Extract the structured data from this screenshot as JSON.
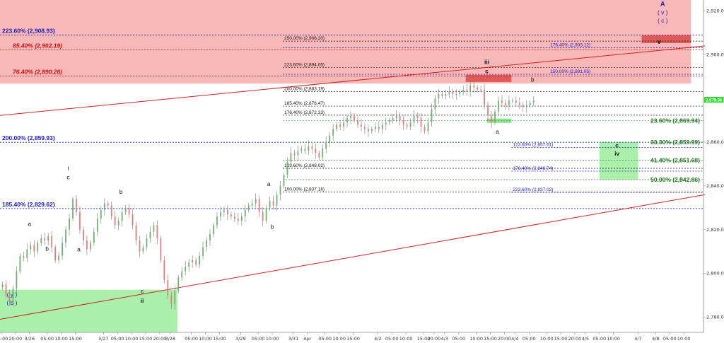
{
  "colors": {
    "up_candle": "#6fb26f",
    "down_candle": "#e87c7c",
    "wick": "#777777",
    "resistance_zone": "#f8b8b8",
    "support_zone": "#aaf0aa",
    "small_red_box": "#e05a5a",
    "small_green_box": "#8fe38f",
    "blue_text": "#1a1acc",
    "red_text": "#cc1111",
    "green_text": "#1f7a1f",
    "black_text": "#111111",
    "trendline": "#cc2222",
    "last_price_tag": "#22dd22"
  },
  "chart_data": {
    "type": "candlestick",
    "title": "",
    "xlabel": "",
    "ylabel": "",
    "ylim": [
      2773,
      2925
    ],
    "grid": false,
    "y_axis_side": "right",
    "y_ticks": [
      "2,780.00",
      "2,800.00",
      "2,820.00",
      "2,840.00",
      "2,860.00",
      "2,880.00",
      "2,900.00",
      "2,920.00"
    ],
    "y_tick_values": [
      2780,
      2800,
      2820,
      2840,
      2860,
      2880,
      2900,
      2920
    ],
    "last_price": 2879.36,
    "last_price_label": "2,879.36",
    "x_ticks": [
      {
        "label": "15:00",
        "i": 0
      },
      {
        "label": "20:00",
        "i": 4
      },
      {
        "label": "3/26",
        "i": 8
      },
      {
        "label": "05:00",
        "i": 13
      },
      {
        "label": "10:00",
        "i": 17
      },
      {
        "label": "15:00",
        "i": 21
      },
      {
        "label": "3/27",
        "i": 29
      },
      {
        "label": "05:00",
        "i": 33
      },
      {
        "label": "10:00",
        "i": 37
      },
      {
        "label": "15:00",
        "i": 41
      },
      {
        "label": "20:00",
        "i": 45
      },
      {
        "label": "3/28",
        "i": 48
      },
      {
        "label": "05:00",
        "i": 54
      },
      {
        "label": "10:00",
        "i": 58
      },
      {
        "label": "15:00",
        "i": 62
      },
      {
        "label": "3/29",
        "i": 68
      },
      {
        "label": "05:00",
        "i": 73
      },
      {
        "label": "10:00",
        "i": 77
      },
      {
        "label": "3/31",
        "i": 83
      },
      {
        "label": "Apr",
        "i": 87
      },
      {
        "label": "05:00",
        "i": 92
      },
      {
        "label": "10:00",
        "i": 96
      },
      {
        "label": "15:00",
        "i": 100
      },
      {
        "label": "4/2",
        "i": 107
      },
      {
        "label": "05:00",
        "i": 111
      },
      {
        "label": "10:00",
        "i": 115
      },
      {
        "label": "15:00",
        "i": 120
      },
      {
        "label": "20:00",
        "i": 123
      },
      {
        "label": "4/3",
        "i": 126
      },
      {
        "label": "05:00",
        "i": 130
      },
      {
        "label": "10:00",
        "i": 135
      },
      {
        "label": "15:00",
        "i": 139
      },
      {
        "label": "20:00",
        "i": 143
      },
      {
        "label": "4/4",
        "i": 146
      },
      {
        "label": "05:00",
        "i": 150
      },
      {
        "label": "10:00",
        "i": 155
      },
      {
        "label": "15:00",
        "i": 159
      },
      {
        "label": "20:00",
        "i": 163
      },
      {
        "label": "4/5",
        "i": 166
      },
      {
        "label": "05:00",
        "i": 170
      },
      {
        "label": "10:00",
        "i": 174
      },
      {
        "label": "4/7",
        "i": 181
      },
      {
        "label": "4/8",
        "i": 186
      },
      {
        "label": "05:00",
        "i": 190
      },
      {
        "label": "10:00",
        "i": 194
      }
    ],
    "x_count": 200,
    "closes": [
      2795,
      2790,
      2787,
      2793,
      2801,
      2808,
      2807,
      2811,
      2813,
      2810,
      2814,
      2816,
      2815,
      2817,
      2812,
      2806,
      2808,
      2814,
      2820,
      2825,
      2834,
      2828,
      2820,
      2815,
      2811,
      2814,
      2819,
      2825,
      2829,
      2832,
      2831,
      2826,
      2822,
      2824,
      2828,
      2830,
      2827,
      2822,
      2815,
      2810,
      2812,
      2816,
      2819,
      2822,
      2816,
      2806,
      2797,
      2790,
      2786,
      2792,
      2798,
      2801,
      2803,
      2805,
      2806,
      2804,
      2808,
      2812,
      2815,
      2818,
      2822,
      2826,
      2828,
      2829,
      2827,
      2826,
      2825,
      2824,
      2826,
      2829,
      2831,
      2832,
      2834,
      2828,
      2824,
      2830,
      2833,
      2831,
      2836,
      2840,
      2845,
      2851,
      2855,
      2854,
      2856,
      2857,
      2856,
      2858,
      2857,
      2855,
      2853,
      2857,
      2860,
      2863,
      2866,
      2868,
      2867,
      2869,
      2871,
      2872,
      2870,
      2868,
      2867,
      2866,
      2865,
      2866,
      2867,
      2866,
      2868,
      2869,
      2870,
      2871,
      2872,
      2870,
      2868,
      2867,
      2869,
      2872,
      2871,
      2867,
      2865,
      2869,
      2875,
      2880,
      2882,
      2881,
      2882,
      2883,
      2882,
      2882,
      2883,
      2884,
      2883,
      2886,
      2885,
      2884,
      2884,
      2877,
      2872,
      2869,
      2874,
      2879,
      2878,
      2877,
      2879,
      2879,
      2878,
      2877,
      2876,
      2877,
      2878,
      2879
    ],
    "ohlc_note": "closes listed per bar; open = previous close",
    "price_annotations": [
      {
        "label": "223.60% (2,908.93)",
        "value": 2908.93,
        "color": "blue",
        "bold": true,
        "italic": false,
        "from_i": 0,
        "to_i": 200
      },
      {
        "label": "85.40% (2,902.19)",
        "value": 2902.19,
        "color": "red",
        "bold": true,
        "italic": true,
        "from_i": 0,
        "to_i": 200
      },
      {
        "label": "76.40% (2,890.26)",
        "value": 2890.26,
        "color": "red",
        "bold": true,
        "italic": true,
        "from_i": 0,
        "to_i": 200
      },
      {
        "label": "200.00% (2,859.93)",
        "value": 2859.93,
        "color": "blue",
        "bold": true,
        "italic": false,
        "from_i": 0,
        "to_i": 200
      },
      {
        "label": "185.40% (2,829.62)",
        "value": 2829.62,
        "color": "blue",
        "bold": true,
        "italic": false,
        "from_i": 0,
        "to_i": 200
      }
    ],
    "fib_levels": [
      {
        "label": "250.00% (2,906.20)",
        "value": 2906.2,
        "color": "black",
        "from_i": 80,
        "to_i": 200
      },
      {
        "label": "176.40% (2,903.12)",
        "value": 2903.12,
        "color": "blue",
        "from_i": 80,
        "to_i": 200
      },
      {
        "label": "223.60% (2,894.05)",
        "value": 2894.05,
        "color": "black",
        "from_i": 80,
        "to_i": 200
      },
      {
        "label": "150.00% (2,891.05)",
        "value": 2891.05,
        "color": "blue",
        "from_i": 80,
        "to_i": 200
      },
      {
        "label": "200.00% (2,883.19)",
        "value": 2883.19,
        "color": "black",
        "from_i": 80,
        "to_i": 200
      },
      {
        "label": "185.40% (2,876.47)",
        "value": 2876.47,
        "color": "black",
        "from_i": 80,
        "to_i": 200
      },
      {
        "label": "176.40% (2,872.33)",
        "value": 2872.33,
        "color": "black",
        "from_i": 80,
        "to_i": 200
      },
      {
        "label": "123.60% (2,857.61)",
        "value": 2857.61,
        "color": "blue",
        "from_i": 145,
        "to_i": 200
      },
      {
        "label": "123.60% (2,848.02)",
        "value": 2848.02,
        "color": "black",
        "from_i": 80,
        "to_i": 200
      },
      {
        "label": "176.40% (2,846.74)",
        "value": 2846.74,
        "color": "blue",
        "from_i": 145,
        "to_i": 200
      },
      {
        "label": "100.00% (2,837.16)",
        "value": 2837.16,
        "color": "black",
        "from_i": 80,
        "to_i": 200
      },
      {
        "label": "223.60% (2,837.02)",
        "value": 2837.02,
        "color": "blue",
        "from_i": 145,
        "to_i": 200
      }
    ],
    "green_levels": [
      {
        "label": "23.60% (2,869.94)",
        "value": 2869.94
      },
      {
        "label": "33.30% (2,859.99)",
        "value": 2859.99
      },
      {
        "label": "41.40% (2,851.68)",
        "value": 2851.68
      },
      {
        "label": "50.00% (2,842.86)",
        "value": 2842.86
      }
    ],
    "zones": [
      {
        "name": "resistance-zone",
        "from_i": 0,
        "to_i": 196,
        "y_top": 2925,
        "y_bottom": 2886.8
      },
      {
        "name": "support-zone",
        "from_i": 0,
        "to_i": 50,
        "y_top": 2792.5,
        "y_bottom": 2773
      },
      {
        "name": "wave-iv-target-zone",
        "from_i": 170,
        "to_i": 181,
        "y_top": 2860,
        "y_bottom": 2842.9
      }
    ],
    "small_boxes": [
      {
        "name": "wave-v-target-box",
        "color": "red",
        "from_i": 182,
        "to_i": 196,
        "y_top": 2908.9,
        "y_bottom": 2905.3
      },
      {
        "name": "wave-iii-box",
        "color": "red",
        "from_i": 132,
        "to_i": 145,
        "y_top": 2890.8,
        "y_bottom": 2887.5
      },
      {
        "name": "wave-a-box",
        "color": "green",
        "from_i": 138,
        "to_i": 145,
        "y_top": 2870.8,
        "y_bottom": 2868.8
      }
    ],
    "trendlines": [
      {
        "name": "upper-channel-line",
        "x1": 0,
        "y1": 2872.2,
        "x2": 200,
        "y2": 2904.0
      },
      {
        "name": "lower-channel-line",
        "x1": 0,
        "y1": 2779.0,
        "x2": 200,
        "y2": 2836.0
      }
    ],
    "wave_labels": [
      {
        "text": "A",
        "i": 188,
        "y": 2922.3,
        "color": "blue",
        "bold": true,
        "size": 9
      },
      {
        "text": "( v )",
        "i": 188,
        "y": 2918.4,
        "color": "blue",
        "bold": false,
        "size": 8.5
      },
      {
        "text": "( c )",
        "i": 188,
        "y": 2914.6,
        "color": "blue",
        "bold": false,
        "size": 8.5
      },
      {
        "text": "v",
        "i": 187,
        "y": 2905.0,
        "color": "black",
        "bold": true,
        "size": 9
      },
      {
        "text": "iii",
        "i": 138,
        "y": 2895.8,
        "color": "black",
        "bold": true,
        "size": 8.5
      },
      {
        "text": "c",
        "i": 138,
        "y": 2891.5,
        "color": "black",
        "bold": true,
        "size": 8.5
      },
      {
        "text": "b",
        "i": 151,
        "y": 2887.7,
        "color": "black",
        "bold": false,
        "size": 8.5
      },
      {
        "text": "a",
        "i": 141,
        "y": 2863.8,
        "color": "black",
        "bold": false,
        "size": 8.5
      },
      {
        "text": "c",
        "i": 175,
        "y": 2857.5,
        "color": "black",
        "bold": true,
        "size": 8.5
      },
      {
        "text": "iv",
        "i": 175,
        "y": 2853.8,
        "color": "black",
        "bold": true,
        "size": 8.5
      },
      {
        "text": "a",
        "i": 76,
        "y": 2840.0,
        "color": "black",
        "bold": false,
        "size": 8.5
      },
      {
        "text": "b",
        "i": 77,
        "y": 2820.3,
        "color": "black",
        "bold": false,
        "size": 8.5
      },
      {
        "text": "i",
        "i": 19,
        "y": 2847.2,
        "color": "black",
        "bold": false,
        "size": 8.5
      },
      {
        "text": "c",
        "i": 19,
        "y": 2843.0,
        "color": "black",
        "bold": false,
        "size": 8.5
      },
      {
        "text": "b",
        "i": 34,
        "y": 2836.4,
        "color": "black",
        "bold": false,
        "size": 8.5
      },
      {
        "text": "a",
        "i": 8,
        "y": 2821.6,
        "color": "black",
        "bold": false,
        "size": 8.5
      },
      {
        "text": "b",
        "i": 13,
        "y": 2810.4,
        "color": "black",
        "bold": false,
        "size": 8.5
      },
      {
        "text": "a",
        "i": 22,
        "y": 2810.1,
        "color": "black",
        "bold": false,
        "size": 8.5
      },
      {
        "text": "c",
        "i": 40,
        "y": 2791.0,
        "color": "black",
        "bold": false,
        "size": 8.5
      },
      {
        "text": "ii",
        "i": 40,
        "y": 2786.6,
        "color": "black",
        "bold": true,
        "size": 8.5
      },
      {
        "text": "( y )",
        "i": 3,
        "y": 2789.3,
        "color": "blue",
        "bold": false,
        "size": 8.5
      },
      {
        "text": "( b )",
        "i": 3,
        "y": 2785.6,
        "color": "blue",
        "bold": false,
        "size": 8.5
      }
    ]
  }
}
